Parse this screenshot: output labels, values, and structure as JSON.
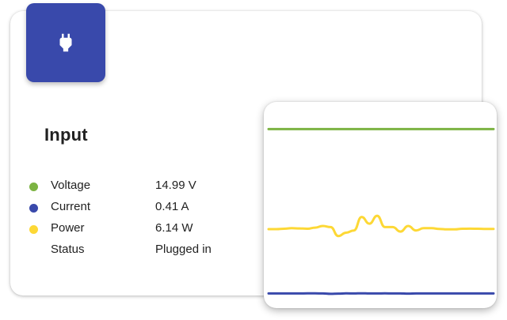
{
  "card": {
    "title": "Input",
    "icon": "power-plug-icon",
    "icon_color": "#3949ab",
    "rows": [
      {
        "label": "Voltage",
        "value": "14.99 V",
        "color": "#7cb342"
      },
      {
        "label": "Current",
        "value": "0.41 A",
        "color": "#3949ab"
      },
      {
        "label": "Power",
        "value": "6.14 W",
        "color": "#fdd835"
      },
      {
        "label": "Status",
        "value": "Plugged in",
        "color": ""
      }
    ]
  },
  "chart_data": {
    "type": "line",
    "title": "",
    "xlabel": "",
    "ylabel": "",
    "grid": false,
    "ylim": [
      0,
      16
    ],
    "x": [
      0,
      1,
      2,
      3,
      4,
      5,
      6,
      7,
      8,
      9,
      10,
      11,
      12,
      13,
      14,
      15,
      16,
      17,
      18,
      19,
      20,
      21,
      22,
      23,
      24,
      25,
      26,
      27,
      28,
      29
    ],
    "series": [
      {
        "color": "#7cb342",
        "values": [
          14.99,
          14.99,
          14.99,
          14.99,
          14.99,
          14.99,
          14.99,
          14.99,
          14.99,
          14.99,
          14.99,
          14.99,
          14.99,
          14.99,
          14.99,
          14.99,
          14.99,
          14.99,
          14.99,
          14.99,
          14.99,
          14.99,
          14.99,
          14.99,
          14.99,
          14.99,
          14.99,
          14.99,
          14.99,
          14.99
        ]
      },
      {
        "color": "#fdd835",
        "values": [
          6.12,
          6.12,
          6.15,
          6.2,
          6.18,
          6.15,
          6.25,
          6.4,
          6.3,
          5.5,
          5.8,
          6.0,
          7.2,
          6.6,
          7.3,
          6.3,
          6.3,
          5.9,
          6.4,
          6.0,
          6.2,
          6.2,
          6.14,
          6.1,
          6.1,
          6.15,
          6.16,
          6.15,
          6.14,
          6.14
        ]
      },
      {
        "color": "#3949ab",
        "values": [
          0.41,
          0.41,
          0.41,
          0.41,
          0.41,
          0.42,
          0.42,
          0.41,
          0.38,
          0.4,
          0.42,
          0.41,
          0.43,
          0.41,
          0.41,
          0.42,
          0.41,
          0.41,
          0.4,
          0.41,
          0.41,
          0.41,
          0.41,
          0.41,
          0.41,
          0.41,
          0.41,
          0.41,
          0.41,
          0.41
        ]
      }
    ]
  }
}
